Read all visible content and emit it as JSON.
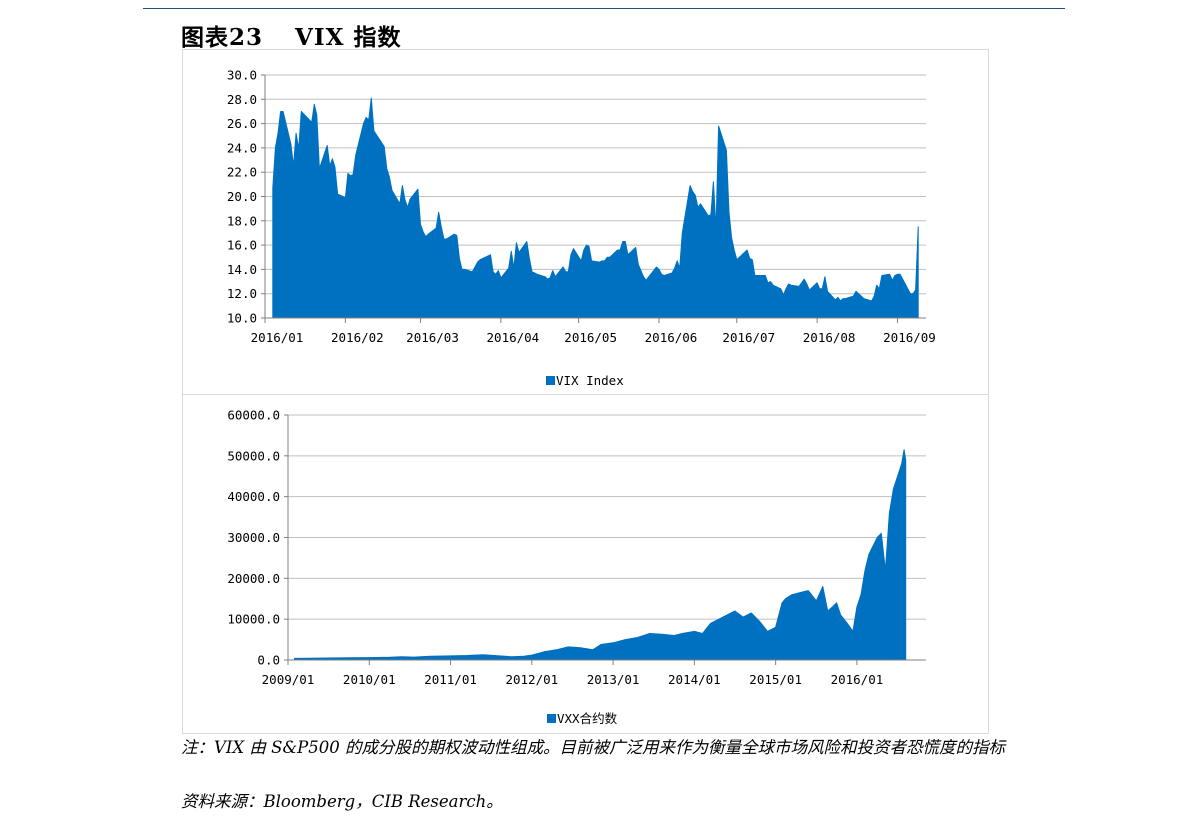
{
  "figure": {
    "label": "图表23",
    "name": "VIX 指数"
  },
  "chart_data": [
    {
      "type": "area",
      "color": "#0070c0",
      "ylim": [
        10,
        30
      ],
      "yticks": [
        "10.0",
        "12.0",
        "14.0",
        "16.0",
        "18.0",
        "20.0",
        "22.0",
        "24.0",
        "26.0",
        "28.0",
        "30.0"
      ],
      "xticks": [
        "2016/01",
        "2016/02",
        "2016/03",
        "2016/04",
        "2016/05",
        "2016/06",
        "2016/07",
        "2016/08",
        "2016/09"
      ],
      "legend": "top-bottom",
      "series": [
        {
          "name": "VIX Index",
          "x": [
            "2016/01/04",
            "2016/01/05",
            "2016/01/06",
            "2016/01/07",
            "2016/01/08",
            "2016/01/11",
            "2016/01/12",
            "2016/01/13",
            "2016/01/14",
            "2016/01/15",
            "2016/01/19",
            "2016/01/20",
            "2016/01/21",
            "2016/01/22",
            "2016/01/25",
            "2016/01/26",
            "2016/01/27",
            "2016/01/28",
            "2016/01/29",
            "2016/02/01",
            "2016/02/02",
            "2016/02/03",
            "2016/02/04",
            "2016/02/05",
            "2016/02/08",
            "2016/02/09",
            "2016/02/10",
            "2016/02/11",
            "2016/02/12",
            "2016/02/16",
            "2016/02/17",
            "2016/02/18",
            "2016/02/19",
            "2016/02/22",
            "2016/02/23",
            "2016/02/24",
            "2016/02/25",
            "2016/02/26",
            "2016/02/29",
            "2016/03/01",
            "2016/03/02",
            "2016/03/03",
            "2016/03/04",
            "2016/03/07",
            "2016/03/08",
            "2016/03/09",
            "2016/03/10",
            "2016/03/11",
            "2016/03/14",
            "2016/03/15",
            "2016/03/16",
            "2016/03/17",
            "2016/03/18",
            "2016/03/21",
            "2016/03/22",
            "2016/03/23",
            "2016/03/24",
            "2016/03/28",
            "2016/03/29",
            "2016/03/30",
            "2016/03/31",
            "2016/04/01",
            "2016/04/04",
            "2016/04/05",
            "2016/04/06",
            "2016/04/07",
            "2016/04/08",
            "2016/04/11",
            "2016/04/12",
            "2016/04/13",
            "2016/04/14",
            "2016/04/15",
            "2016/04/18",
            "2016/04/19",
            "2016/04/20",
            "2016/04/21",
            "2016/04/22",
            "2016/04/25",
            "2016/04/26",
            "2016/04/27",
            "2016/04/28",
            "2016/04/29",
            "2016/05/02",
            "2016/05/03",
            "2016/05/04",
            "2016/05/05",
            "2016/05/06",
            "2016/05/09",
            "2016/05/10",
            "2016/05/11",
            "2016/05/12",
            "2016/05/13",
            "2016/05/16",
            "2016/05/17",
            "2016/05/18",
            "2016/05/19",
            "2016/05/20",
            "2016/05/23",
            "2016/05/24",
            "2016/05/25",
            "2016/05/26",
            "2016/05/27",
            "2016/05/31",
            "2016/06/01",
            "2016/06/02",
            "2016/06/03",
            "2016/06/06",
            "2016/06/07",
            "2016/06/08",
            "2016/06/09",
            "2016/06/10",
            "2016/06/13",
            "2016/06/14",
            "2016/06/15",
            "2016/06/16",
            "2016/06/17",
            "2016/06/20",
            "2016/06/21",
            "2016/06/22",
            "2016/06/23",
            "2016/06/24",
            "2016/06/27",
            "2016/06/28",
            "2016/06/29",
            "2016/06/30",
            "2016/07/01",
            "2016/07/05",
            "2016/07/06",
            "2016/07/07",
            "2016/07/08",
            "2016/07/11",
            "2016/07/12",
            "2016/07/13",
            "2016/07/14",
            "2016/07/15",
            "2016/07/18",
            "2016/07/19",
            "2016/07/20",
            "2016/07/21",
            "2016/07/22",
            "2016/07/25",
            "2016/07/26",
            "2016/07/27",
            "2016/07/28",
            "2016/07/29",
            "2016/08/01",
            "2016/08/02",
            "2016/08/03",
            "2016/08/04",
            "2016/08/05",
            "2016/08/08",
            "2016/08/09",
            "2016/08/10",
            "2016/08/11",
            "2016/08/12",
            "2016/08/15",
            "2016/08/16",
            "2016/08/17",
            "2016/08/18",
            "2016/08/19",
            "2016/08/22",
            "2016/08/23",
            "2016/08/24",
            "2016/08/25",
            "2016/08/26",
            "2016/08/29",
            "2016/08/30",
            "2016/08/31",
            "2016/09/01",
            "2016/09/02",
            "2016/09/06",
            "2016/09/07",
            "2016/09/08",
            "2016/09/09"
          ],
          "values": [
            20.7,
            24.0,
            25.2,
            27.0,
            27.0,
            24.3,
            22.5,
            25.2,
            23.9,
            27.0,
            26.1,
            27.6,
            26.7,
            22.3,
            24.2,
            22.5,
            23.1,
            22.4,
            20.2,
            19.9,
            21.9,
            21.7,
            21.8,
            23.4,
            26.0,
            26.5,
            26.3,
            28.1,
            25.4,
            24.1,
            22.3,
            21.6,
            20.5,
            19.4,
            20.9,
            19.7,
            19.1,
            19.8,
            20.6,
            17.7,
            17.1,
            16.7,
            16.9,
            17.4,
            18.7,
            17.5,
            16.5,
            16.5,
            16.9,
            16.8,
            14.9,
            14.0,
            14.0,
            13.8,
            14.2,
            14.6,
            14.8,
            15.2,
            13.8,
            13.6,
            13.9,
            13.3,
            14.1,
            15.5,
            14.1,
            16.2,
            15.4,
            16.3,
            14.9,
            13.8,
            13.7,
            13.6,
            13.4,
            13.2,
            13.3,
            13.9,
            13.4,
            14.2,
            13.8,
            13.8,
            15.2,
            15.7,
            14.7,
            15.6,
            16.0,
            15.9,
            14.7,
            14.6,
            14.7,
            14.7,
            15.0,
            15.0,
            15.6,
            15.6,
            16.3,
            16.3,
            15.2,
            15.8,
            14.4,
            13.9,
            13.4,
            13.1,
            14.2,
            14.0,
            13.6,
            13.5,
            13.7,
            14.1,
            14.7,
            14.1,
            17.0,
            20.9,
            20.4,
            20.1,
            19.1,
            19.4,
            18.4,
            18.5,
            21.2,
            17.3,
            25.8,
            23.8,
            18.7,
            16.6,
            15.6,
            14.8,
            15.6,
            14.9,
            14.8,
            13.5,
            13.5,
            13.5,
            12.9,
            13.0,
            12.7,
            12.4,
            11.9,
            12.4,
            12.8,
            12.7,
            12.6,
            12.9,
            13.2,
            12.8,
            12.3,
            12.9,
            12.4,
            12.4,
            13.4,
            12.2,
            11.5,
            11.7,
            11.4,
            11.6,
            11.6,
            11.8,
            12.2,
            12.0,
            11.8,
            11.6,
            11.4,
            11.8,
            12.7,
            12.4,
            13.5,
            13.6,
            13.1,
            13.5,
            13.6,
            13.6,
            12.0,
            12.0,
            12.3,
            17.5
          ]
        }
      ]
    },
    {
      "type": "area",
      "color": "#0070c0",
      "ylim": [
        0,
        60000
      ],
      "yticks": [
        "0.0",
        "10000.0",
        "20000.0",
        "30000.0",
        "40000.0",
        "50000.0",
        "60000.0"
      ],
      "xticks": [
        "2009/01",
        "2010/01",
        "2011/01",
        "2012/01",
        "2013/01",
        "2014/01",
        "2015/01",
        "2016/01"
      ],
      "legend": "top-bottom",
      "series": [
        {
          "name": "VXX合约数",
          "x": [
            2009.08,
            2009.25,
            2009.5,
            2009.75,
            2010.0,
            2010.25,
            2010.4,
            2010.55,
            2010.75,
            2011.0,
            2011.2,
            2011.4,
            2011.6,
            2011.75,
            2011.9,
            2012.0,
            2012.15,
            2012.3,
            2012.45,
            2012.6,
            2012.75,
            2012.85,
            2013.0,
            2013.15,
            2013.3,
            2013.45,
            2013.6,
            2013.75,
            2013.85,
            2014.0,
            2014.1,
            2014.2,
            2014.3,
            2014.4,
            2014.5,
            2014.6,
            2014.7,
            2014.8,
            2014.9,
            2015.0,
            2015.08,
            2015.12,
            2015.2,
            2015.3,
            2015.4,
            2015.5,
            2015.58,
            2015.64,
            2015.7,
            2015.75,
            2015.8,
            2015.88,
            2015.95,
            2016.0,
            2016.05,
            2016.1,
            2016.15,
            2016.2,
            2016.25,
            2016.3,
            2016.35,
            2016.4,
            2016.45,
            2016.5,
            2016.55,
            2016.58,
            2016.6
          ],
          "values": [
            400,
            450,
            500,
            550,
            600,
            650,
            800,
            700,
            900,
            1000,
            1100,
            1300,
            1000,
            800,
            900,
            1200,
            2000,
            2500,
            3200,
            3000,
            2500,
            3800,
            4200,
            5000,
            5500,
            6500,
            6300,
            6000,
            6500,
            7000,
            6500,
            9000,
            10000,
            11000,
            12000,
            10500,
            11500,
            9500,
            7000,
            8000,
            14000,
            15000,
            16000,
            16500,
            17000,
            14500,
            18000,
            12000,
            13000,
            14000,
            11000,
            9000,
            7000,
            13000,
            16000,
            22000,
            26000,
            28000,
            30000,
            31000,
            22000,
            36000,
            42000,
            45000,
            48000,
            51500,
            49000
          ]
        }
      ]
    }
  ],
  "notes": {
    "line1": "注：VIX 由 S&P500 的成分股的期权波动性组成。目前被广泛用来作为衡量全球市场风险和投资者恐慌度的指标",
    "source": "资料来源：Bloomberg，CIB Research。"
  }
}
